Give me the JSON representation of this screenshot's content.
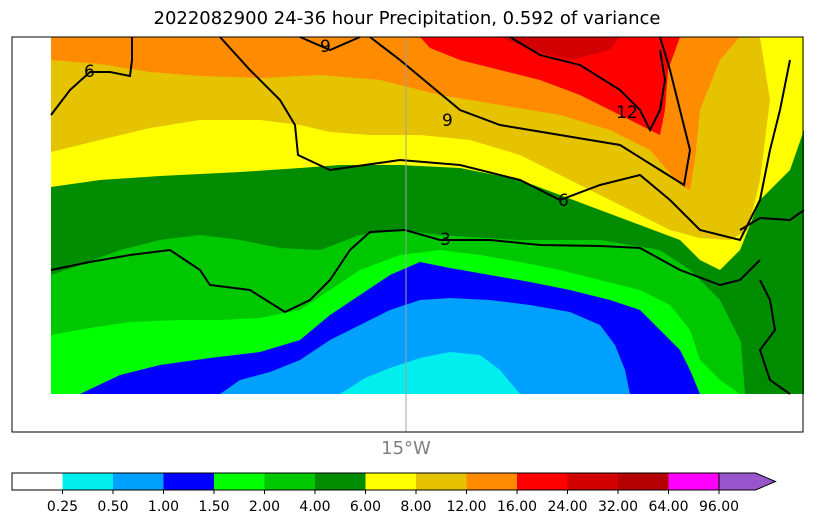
{
  "title": "2022082900 24-36 hour Precipitation, 0.592 of variance",
  "longitude_label": "15°W",
  "contour_labels": [
    "6",
    "9",
    "9",
    "12",
    "6",
    "3"
  ],
  "colorbar": {
    "ticks": [
      "0.25",
      "0.50",
      "1.00",
      "1.50",
      "2.00",
      "4.00",
      "6.00",
      "8.00",
      "12.00",
      "16.00",
      "24.00",
      "32.00",
      "64.00",
      "96.00"
    ],
    "colors": [
      "#ffffff",
      "#00eeee",
      "#00a0ff",
      "#0000ff",
      "#00ff00",
      "#00c800",
      "#008c00",
      "#ffff00",
      "#e6c300",
      "#ff8c00",
      "#ff0000",
      "#d20000",
      "#b40000",
      "#ff00ff",
      "#9955cc"
    ]
  }
}
